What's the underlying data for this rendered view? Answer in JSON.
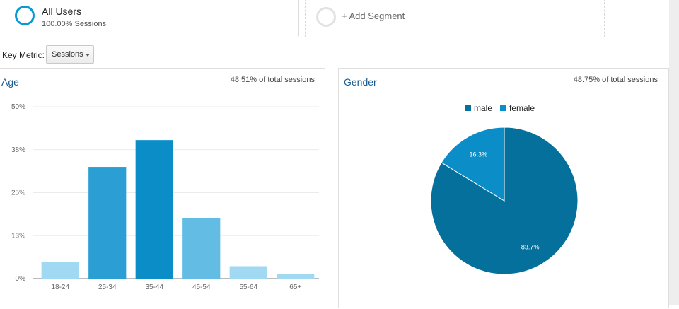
{
  "segments": {
    "primary": {
      "name": "All Users",
      "sub": "100.00% Sessions",
      "color": "#0a9ad3"
    },
    "add_label": "+ Add Segment"
  },
  "key_metric": {
    "label": "Key Metric:",
    "selected": "Sessions"
  },
  "age": {
    "title": "Age",
    "meta": "48.51% of total sessions",
    "chart_data": {
      "type": "bar",
      "categories": [
        "18-24",
        "25-34",
        "35-44",
        "45-54",
        "55-64",
        "65+"
      ],
      "values": [
        4.9,
        32.5,
        40.3,
        17.5,
        3.6,
        1.3
      ],
      "colors": [
        "#a1d8f2",
        "#2b9fd4",
        "#0b8ec8",
        "#62bce4",
        "#a1d8f2",
        "#a1d8f2"
      ],
      "y_ticks": [
        "0%",
        "13%",
        "25%",
        "38%",
        "50%"
      ],
      "ylim": [
        0,
        50
      ],
      "grid": true
    }
  },
  "gender": {
    "title": "Gender",
    "meta": "48.75% of total sessions",
    "chart_data": {
      "type": "pie",
      "legend_position": "top",
      "slices": [
        {
          "name": "male",
          "value": 83.7,
          "label": "83.7%",
          "color": "#06709c"
        },
        {
          "name": "female",
          "value": 16.3,
          "label": "16.3%",
          "color": "#0b8ec8"
        }
      ]
    }
  }
}
